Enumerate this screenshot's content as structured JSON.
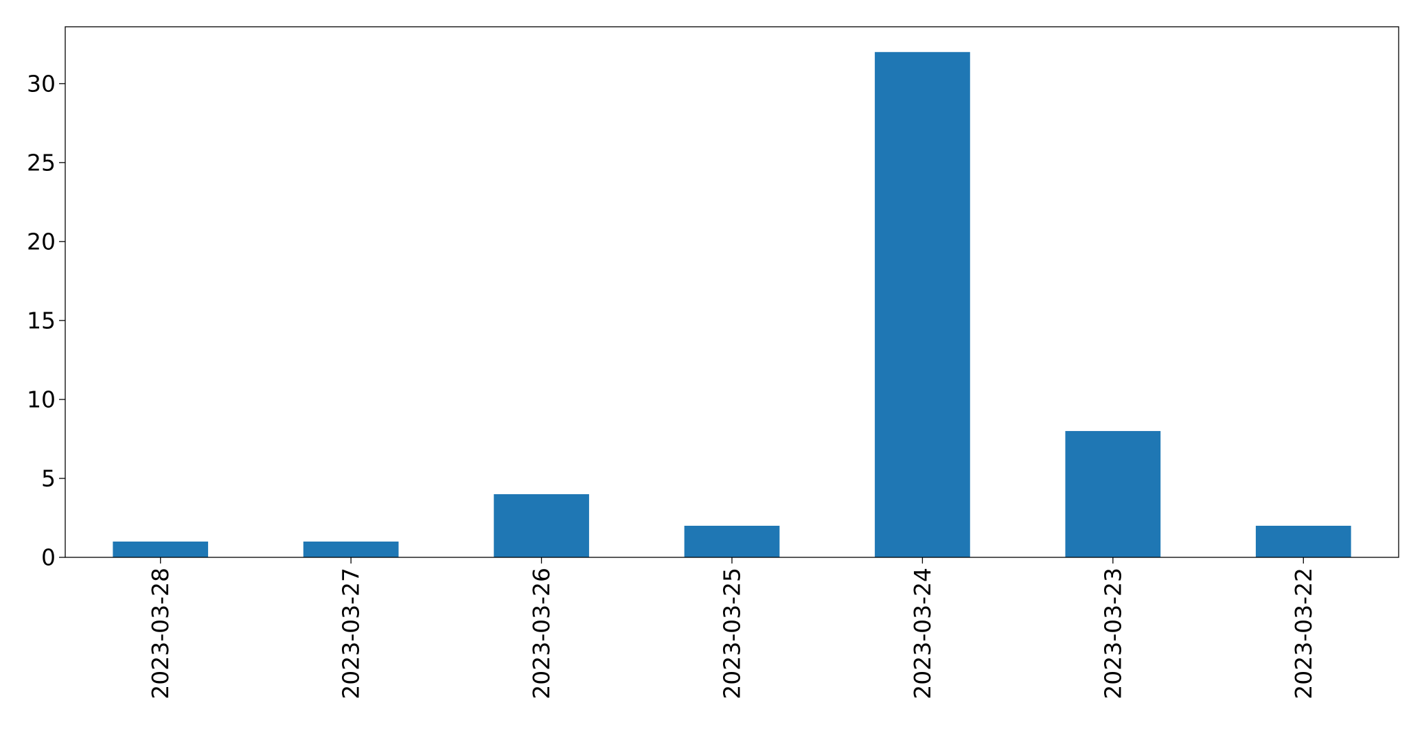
{
  "chart_data": {
    "type": "bar",
    "categories": [
      "2023-03-28",
      "2023-03-27",
      "2023-03-26",
      "2023-03-25",
      "2023-03-24",
      "2023-03-23",
      "2023-03-22"
    ],
    "values": [
      1,
      1,
      4,
      2,
      32,
      8,
      2
    ],
    "title": "",
    "xlabel": "",
    "ylabel": "",
    "ylim": [
      0,
      33.6
    ],
    "yticks": [
      0,
      5,
      10,
      15,
      20,
      25,
      30
    ],
    "grid": false,
    "legend": false,
    "colors": {
      "bar": "#1f77b4",
      "axes": "#000000",
      "background": "#ffffff"
    }
  }
}
